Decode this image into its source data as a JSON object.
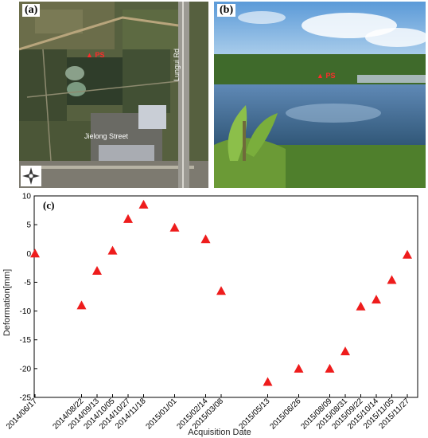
{
  "panel_a": {
    "label": "(a)",
    "road_label": "Lungui Rd",
    "street_label": "Jielong Street",
    "point_label": "PS"
  },
  "panel_b": {
    "label": "(b)",
    "point_label": "PS"
  },
  "chart_data": {
    "type": "scatter",
    "panel_label": "(c)",
    "xlabel": "Acquisition Date",
    "ylabel": "Deformation[mm]",
    "ylim": [
      -25,
      10
    ],
    "yticks": [
      10,
      5,
      0,
      -5,
      -10,
      -15,
      -20,
      -25
    ],
    "marker": "triangle",
    "marker_color": "#ee1c1c",
    "x_ticks": [
      "2014/06/17",
      "2014/08/22",
      "2014/09/13",
      "2014/10/05",
      "2014/10/27",
      "2014/11/18",
      "2015/01/01",
      "2015/02/14",
      "2015/03/08",
      "2015/05/13",
      "2015/06/26",
      "2015/08/09",
      "2015/08/31",
      "2015/09/22",
      "2015/10/14",
      "2015/11/05",
      "2015/11/27"
    ],
    "series": [
      {
        "x": [
          "2014/06/17",
          "2014/08/22",
          "2014/09/13",
          "2014/10/05",
          "2014/10/27",
          "2014/11/18",
          "2015/01/01",
          "2015/02/14",
          "2015/03/08",
          "2015/05/13",
          "2015/06/26",
          "2015/08/09",
          "2015/08/31",
          "2015/09/22",
          "2015/10/14",
          "2015/11/05",
          "2015/11/27"
        ],
        "y": [
          0,
          -9,
          -3,
          0.5,
          6,
          8.5,
          4.5,
          2.5,
          -6.5,
          -22.3,
          -20,
          -20,
          -17,
          -9.2,
          -8,
          -4.6,
          -0.2
        ]
      }
    ]
  }
}
